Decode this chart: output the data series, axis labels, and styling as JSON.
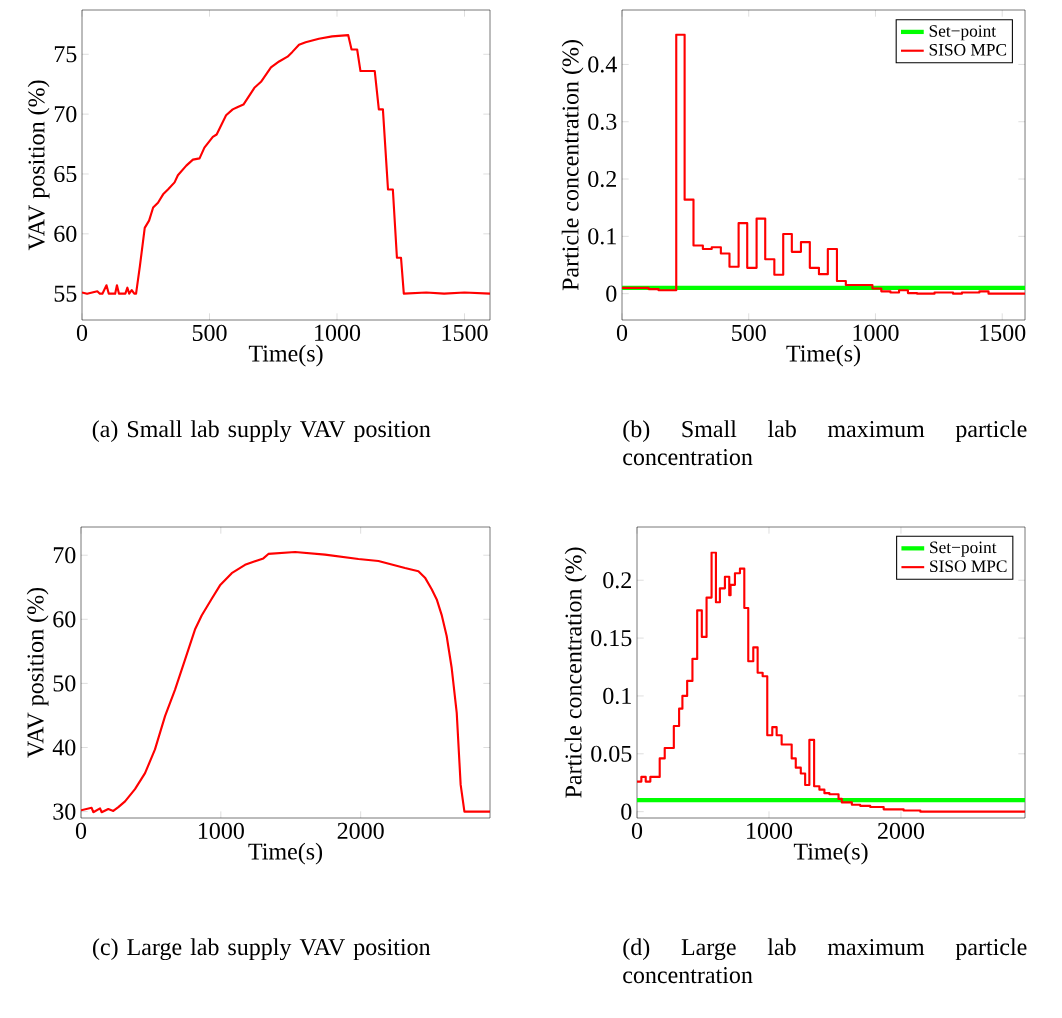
{
  "chart_data": [
    {
      "type": "line",
      "title": "(a) Small lab supply VAV position",
      "xlabel": "Time(s)",
      "ylabel": "VAV position (%)",
      "xlim": [
        0,
        1600
      ],
      "ylim": [
        52.8,
        78.7
      ],
      "xticks": [
        0,
        500,
        1000,
        1500
      ],
      "yticks": [
        55,
        60,
        65,
        70,
        75
      ],
      "series": [
        {
          "color": "#ff0000",
          "x": [
            0,
            20,
            60,
            70,
            80,
            96,
            105,
            130,
            137,
            145,
            170,
            178,
            185,
            195,
            205,
            212,
            227,
            246,
            263,
            279,
            298,
            318,
            337,
            363,
            376,
            409,
            435,
            461,
            480,
            513,
            528,
            565,
            591,
            611,
            633,
            676,
            702,
            741,
            773,
            806,
            825,
            851,
            877,
            929,
            981,
            1044,
            1057,
            1079,
            1092,
            1148,
            1164,
            1180,
            1200,
            1219,
            1235,
            1251,
            1262,
            1350,
            1420,
            1500,
            1600
          ],
          "values": [
            55.1,
            55.0,
            55.2,
            55.0,
            55.0,
            55.7,
            55.0,
            55.0,
            55.7,
            55.0,
            55.0,
            55.5,
            55.0,
            55.3,
            55.0,
            55.0,
            57.3,
            60.5,
            61.1,
            62.2,
            62.6,
            63.3,
            63.7,
            64.3,
            64.9,
            65.7,
            66.2,
            66.3,
            67.2,
            68.1,
            68.3,
            69.9,
            70.4,
            70.6,
            70.8,
            72.2,
            72.7,
            73.9,
            74.4,
            74.8,
            75.2,
            75.8,
            76.0,
            76.3,
            76.5,
            76.6,
            75.4,
            75.4,
            73.6,
            73.6,
            70.4,
            70.4,
            63.7,
            63.7,
            58.0,
            58.0,
            55.0,
            55.1,
            55.0,
            55.1,
            55.0
          ]
        }
      ]
    },
    {
      "type": "line",
      "title": "(b) Small lab maximum particle concentration",
      "xlabel": "Time(s)",
      "ylabel": "Particle concentration (%)",
      "xlim": [
        0,
        1590
      ],
      "ylim": [
        -0.046,
        0.495
      ],
      "xticks": [
        0,
        500,
        1000,
        1500
      ],
      "yticks": [
        0,
        0.1,
        0.2,
        0.3,
        0.4
      ],
      "legend": "top right",
      "series": [
        {
          "name": "Set−point",
          "color": "#00ff00",
          "type": "line",
          "x": [
            0,
            1590
          ],
          "values": [
            0.01,
            0.01
          ]
        },
        {
          "name": "SISO MPC",
          "color": "#ff0000",
          "type": "step",
          "x": [
            0,
            105,
            144,
            214,
            247,
            282,
            319,
            354,
            390,
            424,
            460,
            494,
            531,
            565,
            601,
            636,
            670,
            706,
            741,
            777,
            812,
            848,
            883,
            988,
            1023,
            1059,
            1093,
            1128,
            1164,
            1233,
            1306,
            1341,
            1410,
            1446,
            1590
          ],
          "values": [
            0.01,
            0.008,
            0.006,
            0.452,
            0.164,
            0.084,
            0.078,
            0.081,
            0.07,
            0.047,
            0.123,
            0.045,
            0.131,
            0.06,
            0.033,
            0.104,
            0.073,
            0.09,
            0.045,
            0.034,
            0.078,
            0.022,
            0.015,
            0.009,
            0.004,
            0.002,
            0.006,
            0.001,
            0.0,
            0.002,
            0.0,
            0.002,
            0.004,
            0.0,
            0.0
          ]
        }
      ]
    },
    {
      "type": "line",
      "title": "(c) Large lab supply VAV position",
      "xlabel": "Time(s)",
      "ylabel": "VAV position (%)",
      "xlim": [
        0,
        2925
      ],
      "ylim": [
        29,
        74.4
      ],
      "xticks": [
        0,
        1000,
        2000
      ],
      "yticks": [
        30,
        40,
        50,
        60,
        70
      ],
      "series": [
        {
          "color": "#ff0000",
          "x": [
            0,
            76,
            88,
            136,
            148,
            195,
            231,
            267,
            315,
            386,
            458,
            529,
            601,
            672,
            744,
            815,
            863,
            935,
            994,
            1078,
            1173,
            1304,
            1340,
            1531,
            1745,
            1984,
            2127,
            2317,
            2413,
            2460,
            2508,
            2544,
            2579,
            2615,
            2651,
            2687,
            2715,
            2742,
            2925
          ],
          "values": [
            30.2,
            30.6,
            29.9,
            30.5,
            29.9,
            30.4,
            30.1,
            30.7,
            31.6,
            33.5,
            36.0,
            39.7,
            44.9,
            49.0,
            53.7,
            58.4,
            60.6,
            63.2,
            65.3,
            67.2,
            68.5,
            69.5,
            70.2,
            70.5,
            70.1,
            69.4,
            69.1,
            68.0,
            67.5,
            66.5,
            64.7,
            63.1,
            60.7,
            57.4,
            52.4,
            45.4,
            34.2,
            30.0,
            30.0
          ]
        }
      ]
    },
    {
      "type": "line",
      "title": "(d) Large lab maximum particle concentration",
      "xlabel": "Time(s)",
      "ylabel": "Particle concentration (%)",
      "xlim": [
        0,
        2940
      ],
      "ylim": [
        -0.0055,
        0.246
      ],
      "xticks": [
        0,
        1000,
        2000
      ],
      "yticks": [
        0,
        0.05,
        0.1,
        0.15,
        0.2
      ],
      "legend": "top right",
      "series": [
        {
          "name": "Set−point",
          "color": "#00ff00",
          "type": "line",
          "x": [
            0,
            2940
          ],
          "values": [
            0.01,
            0.01
          ]
        },
        {
          "name": "SISO MPC",
          "color": "#ff0000",
          "type": "step",
          "x": [
            0,
            33,
            66,
            101,
            172,
            210,
            279,
            319,
            344,
            380,
            420,
            456,
            491,
            527,
            565,
            598,
            628,
            666,
            699,
            709,
            742,
            780,
            813,
            843,
            881,
            914,
            952,
            987,
            1025,
            1058,
            1096,
            1172,
            1203,
            1241,
            1274,
            1306,
            1342,
            1382,
            1420,
            1458,
            1527,
            1552,
            1628,
            1691,
            1767,
            1869,
            2020,
            2147,
            2375,
            2940
          ],
          "values": [
            0.026,
            0.03,
            0.026,
            0.03,
            0.046,
            0.055,
            0.074,
            0.089,
            0.1,
            0.113,
            0.132,
            0.174,
            0.151,
            0.185,
            0.224,
            0.181,
            0.193,
            0.203,
            0.187,
            0.196,
            0.206,
            0.21,
            0.176,
            0.13,
            0.142,
            0.12,
            0.117,
            0.066,
            0.073,
            0.066,
            0.058,
            0.046,
            0.038,
            0.033,
            0.023,
            0.062,
            0.022,
            0.019,
            0.016,
            0.015,
            0.011,
            0.008,
            0.006,
            0.005,
            0.004,
            0.002,
            0.001,
            0.0,
            0.0,
            0.0
          ]
        }
      ]
    }
  ]
}
